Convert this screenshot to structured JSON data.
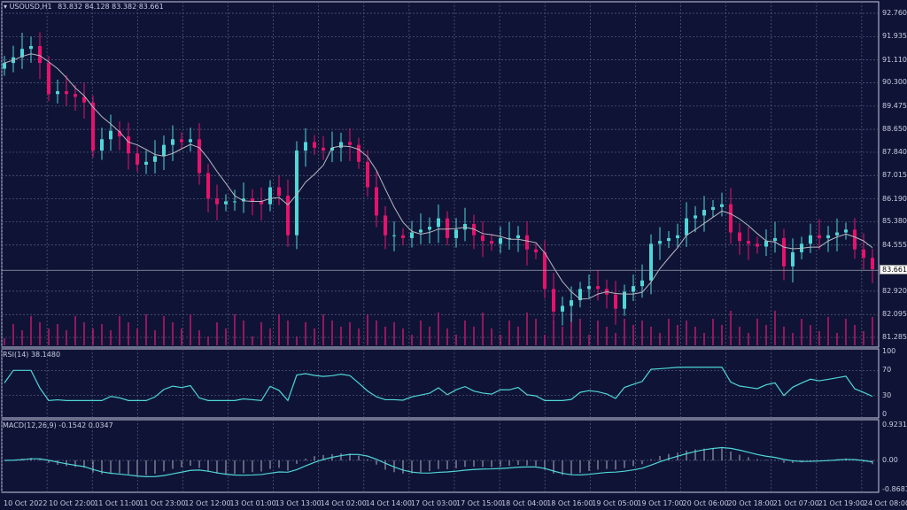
{
  "header": {
    "symbol": "USOUSD,H1",
    "ohlc": "83.832 84.128 83.382 83.661"
  },
  "rsi_label": "RSI(14) 38.1480",
  "macd_label": "MACD(12,26,9) -0.1542 0.0347",
  "colors": {
    "background": "#0f1437",
    "bull": "#4fd6d6",
    "bear": "#e8116b",
    "ma": "#b8b8c0",
    "grid": "#5a6080",
    "volume": "#c0186a"
  },
  "chart_data": [
    {
      "type": "candlestick",
      "title": "USOUSD,H1",
      "y_ticks": [
        "92.760",
        "91.935",
        "91.110",
        "90.300",
        "89.475",
        "88.650",
        "87.840",
        "87.015",
        "86.190",
        "85.380",
        "84.555",
        "82.920",
        "82.095",
        "81.285"
      ],
      "ylim": [
        81.285,
        92.76
      ],
      "current_price": "83.661",
      "x_ticks": [
        "10 Oct 2022",
        "10 Oct 22:00",
        "11 Oct 11:00",
        "11 Oct 23:00",
        "12 Oct 12:00",
        "13 Oct 01:00",
        "13 Oct 13:00",
        "14 Oct 02:00",
        "14 Oct 14:00",
        "17 Oct 03:00",
        "17 Oct 15:00",
        "18 Oct 04:00",
        "18 Oct 16:00",
        "19 Oct 05:00",
        "19 Oct 17:00",
        "20 Oct 06:00",
        "20 Oct 18:00",
        "21 Oct 07:00",
        "21 Oct 19:00",
        "24 Oct 08:00"
      ],
      "grid": true,
      "closes": [
        91.0,
        91.2,
        91.5,
        91.6,
        91.0,
        89.9,
        90.0,
        89.9,
        89.8,
        89.6,
        87.9,
        88.3,
        88.6,
        88.4,
        87.8,
        87.4,
        87.5,
        87.7,
        88.1,
        88.3,
        88.2,
        88.3,
        87.1,
        86.2,
        86.0,
        86.1,
        86.1,
        86.2,
        86.1,
        86.0,
        86.6,
        86.3,
        84.9,
        87.9,
        88.2,
        88.0,
        87.9,
        88.0,
        88.2,
        88.1,
        87.5,
        86.6,
        85.6,
        84.9,
        84.9,
        84.8,
        85.0,
        85.1,
        85.2,
        85.5,
        84.8,
        85.1,
        85.3,
        84.9,
        84.7,
        84.6,
        84.8,
        84.8,
        84.9,
        84.4,
        84.3,
        83.0,
        82.2,
        82.4,
        82.6,
        83.0,
        83.1,
        83.0,
        82.8,
        82.3,
        82.9,
        83.1,
        83.3,
        84.6,
        84.7,
        84.8,
        84.9,
        85.5,
        85.6,
        85.8,
        85.9,
        86.0,
        85.0,
        84.7,
        84.6,
        84.5,
        84.7,
        84.8,
        83.8,
        84.3,
        84.6,
        84.9,
        84.8,
        84.9,
        85.0,
        85.1,
        84.4,
        84.1,
        83.7
      ]
    },
    {
      "type": "line",
      "title": "RSI(14) 38.1480",
      "y_ticks": [
        "100",
        "70",
        "30",
        "0"
      ],
      "ylim": [
        0,
        100
      ]
    },
    {
      "type": "line+bar",
      "title": "MACD(12,26,9) -0.1542 0.0347",
      "y_ticks": [
        "0.9231",
        "0.00",
        "-0.8681"
      ],
      "ylim": [
        -0.8681,
        0.9231
      ]
    }
  ]
}
